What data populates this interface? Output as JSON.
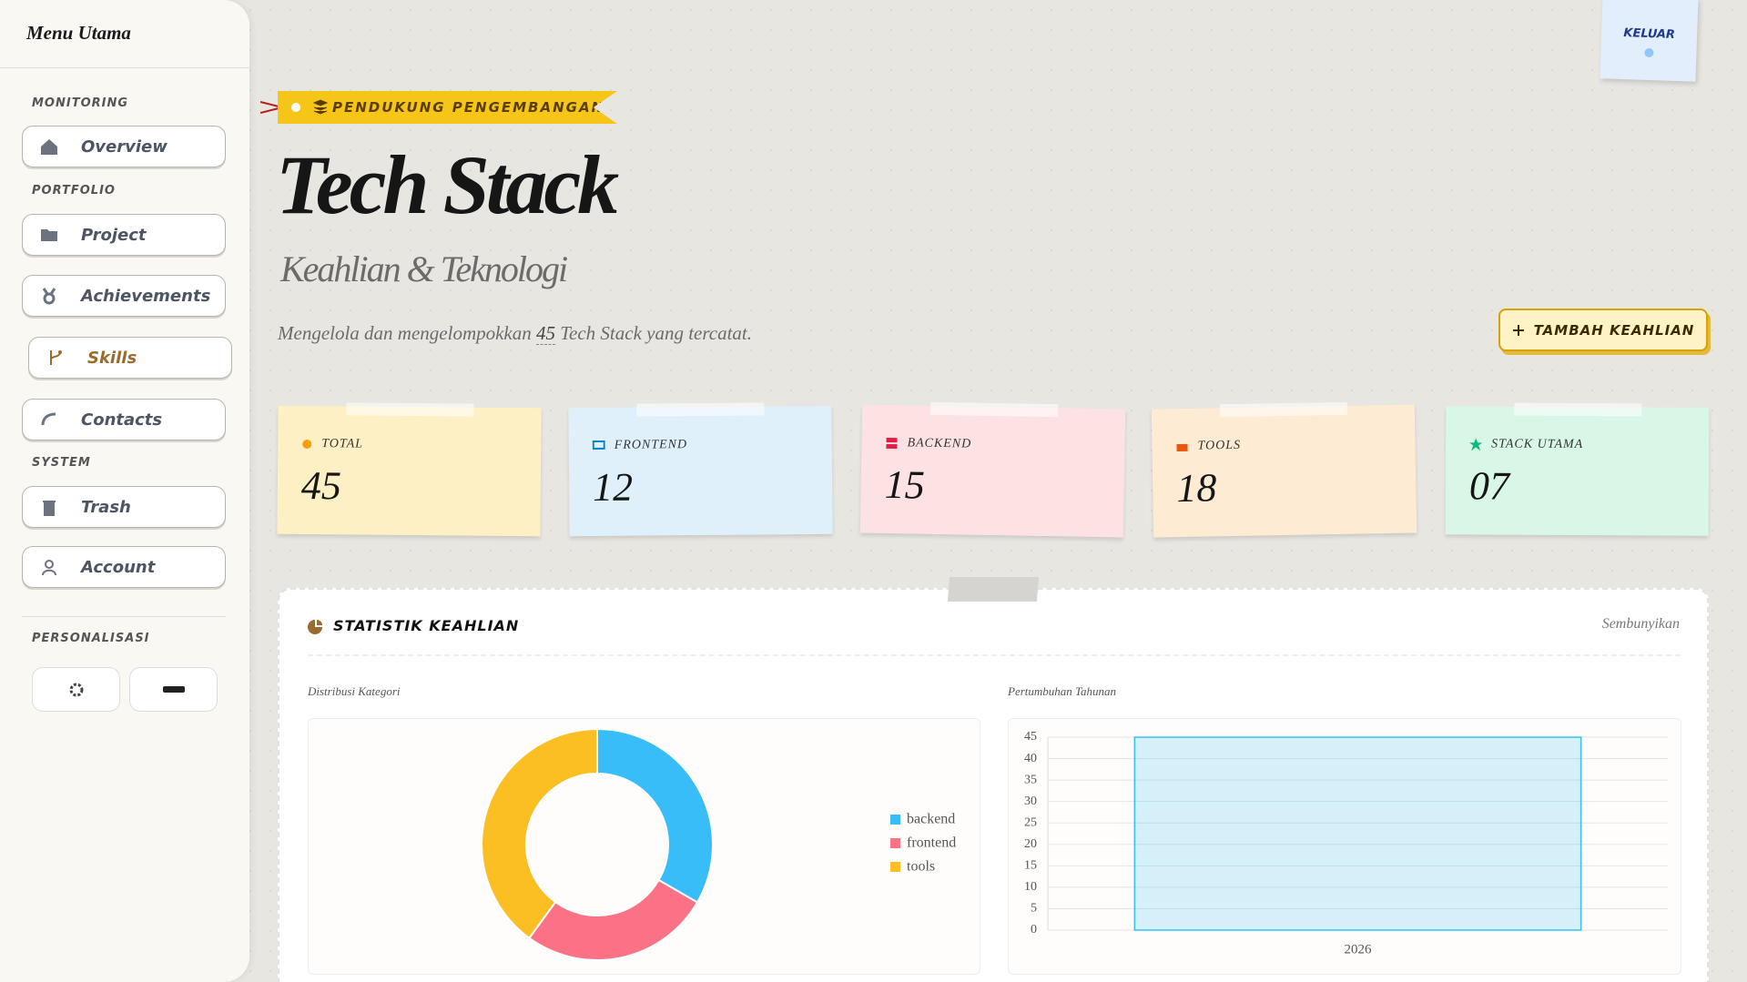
{
  "sidebar": {
    "title": "Menu Utama",
    "sections": [
      {
        "label": "MONITORING",
        "items": [
          "Overview"
        ]
      },
      {
        "label": "PORTFOLIO",
        "items": [
          "Project",
          "Achievements",
          "Skills",
          "Contacts"
        ]
      },
      {
        "label": "SYSTEM",
        "items": [
          "Trash",
          "Account"
        ]
      },
      {
        "label": "PERSONALISASI"
      }
    ]
  },
  "logout": "KELUAR",
  "header": {
    "tag": "PENDUKUNG PENGEMBANGAN",
    "title": "Tech Stack",
    "subtitle": "Keahlian & Teknologi",
    "description": {
      "before": "Mengelola dan mengelompokkan",
      "count": 45,
      "after": "Tech Stack yang tercatat."
    },
    "button": "TAMBAH KEAHLIAN"
  },
  "stats": [
    {
      "label": "TOTAL",
      "value": 45
    },
    {
      "label": "FRONTEND",
      "value": 12
    },
    {
      "label": "BACKEND",
      "value": 15
    },
    {
      "label": "TOOLS",
      "value": 18
    },
    {
      "label": "STACK UTAMA",
      "value": "07"
    }
  ],
  "panel": {
    "title": "STATISTIK KEAHLIAN",
    "toggle": "Sembunyikan"
  },
  "chart_data": [
    {
      "type": "donut",
      "title": "Distribusi Kategori",
      "categories": [
        "backend",
        "frontend",
        "tools"
      ],
      "values": [
        15,
        12,
        18
      ],
      "colors": [
        "#38bdf8",
        "#fb7185",
        "#fbbf24"
      ]
    },
    {
      "type": "bar",
      "title": "Pertumbuhan Tahunan",
      "categories": [
        "2026"
      ],
      "values": [
        45
      ],
      "color": "#38bdf8",
      "ylim": [
        0,
        45
      ],
      "yticks": [
        0,
        5,
        10,
        15,
        20,
        25,
        30,
        35,
        40,
        45
      ],
      "grid": true
    }
  ]
}
